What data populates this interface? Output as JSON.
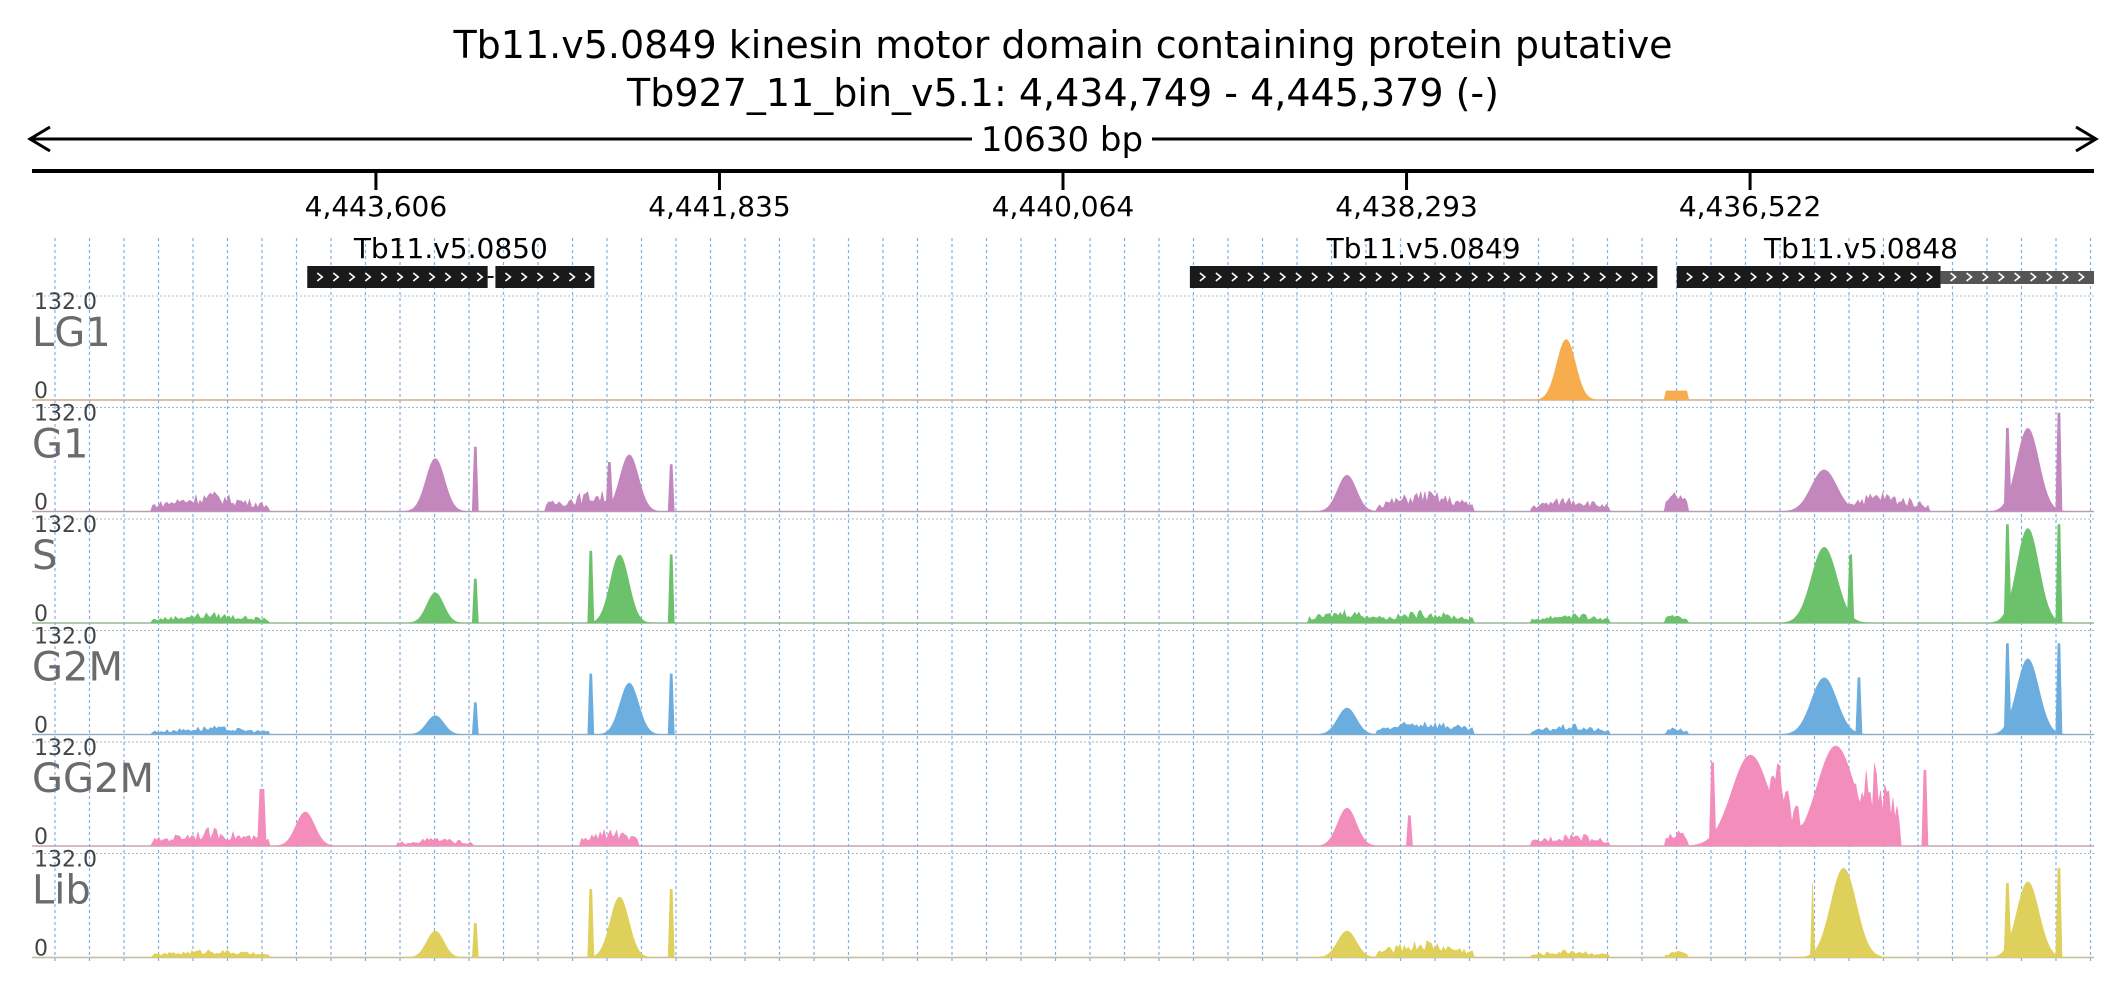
{
  "header": {
    "title": "Tb11.v5.0849  kinesin motor domain containing protein  putative",
    "subtitle": "Tb927_11_bin_v5.1: 4,434,749 - 4,445,379 (-)",
    "span_label": "10630 bp"
  },
  "chart_data": {
    "type": "area",
    "genome_region": {
      "start": 4434749,
      "end": 4445379,
      "strand": "-"
    },
    "ticks": [
      {
        "value": 4443606,
        "label": "4,443,606"
      },
      {
        "value": 4441835,
        "label": "4,441,835"
      },
      {
        "value": 4440064,
        "label": "4,440,064"
      },
      {
        "value": 4438293,
        "label": "4,438,293"
      },
      {
        "value": 4436522,
        "label": "4,436,522"
      }
    ],
    "genes": [
      {
        "name": "Tb11.v5.0850",
        "start": 4442480,
        "end": 4443960,
        "color": "#1a1a1a",
        "gap": [
          4443030,
          4442990
        ]
      },
      {
        "name": "Tb11.v5.0849",
        "start": 4437000,
        "end": 4439410,
        "color": "#1a1a1a"
      },
      {
        "name": "Tb11.v5.0848",
        "start": 4434749,
        "end": 4436900,
        "color": "#1a1a1a",
        "split": 4435540,
        "split_color": "#555555"
      }
    ],
    "y_max_label": "132.0",
    "y_min_label": "0",
    "ylim": [
      0,
      132
    ],
    "tracks": [
      {
        "name": "LG1",
        "color": "#f7ac4d",
        "peaks": [
          [
            4437778,
            130,
            0,
            "block"
          ],
          [
            4437470,
            80,
            110,
            "gauss"
          ],
          [
            4436640,
            0,
            45,
            "gauss"
          ],
          [
            4435825,
            130,
            0,
            "block"
          ],
          [
            4436485,
            130,
            0,
            "block"
          ],
          [
            4436180,
            130,
            0,
            "block"
          ],
          [
            4436150,
            130,
            0,
            "gauss"
          ],
          [
            4436900,
            12,
            120,
            "block"
          ]
        ]
      },
      {
        "name": "G1",
        "color": "#c387bd",
        "peaks": [
          [
            4444460,
            28,
            300,
            "noise"
          ],
          [
            4443300,
            70,
            110,
            "gauss"
          ],
          [
            4443090,
            85,
            20,
            "block"
          ],
          [
            4442300,
            75,
            110,
            "gauss"
          ],
          [
            4442400,
            65,
            20,
            "block"
          ],
          [
            4442080,
            62,
            20,
            "block"
          ],
          [
            4442480,
            30,
            250,
            "noise"
          ],
          [
            4438600,
            48,
            110,
            "gauss"
          ],
          [
            4438200,
            30,
            250,
            "noise"
          ],
          [
            4437450,
            22,
            200,
            "noise"
          ],
          [
            4436900,
            32,
            60,
            "noise"
          ],
          [
            4436140,
            55,
            150,
            "gauss"
          ],
          [
            4435850,
            28,
            250,
            "noise"
          ],
          [
            4435090,
            110,
            130,
            "gauss"
          ],
          [
            4435200,
            110,
            20,
            "block"
          ],
          [
            4434930,
            130,
            20,
            "block"
          ]
        ]
      },
      {
        "name": "S",
        "color": "#6bc26b",
        "peaks": [
          [
            4444460,
            15,
            300,
            "noise"
          ],
          [
            4443300,
            40,
            100,
            "gauss"
          ],
          [
            4443090,
            58,
            20,
            "block"
          ],
          [
            4442350,
            90,
            110,
            "gauss"
          ],
          [
            4442500,
            95,
            20,
            "block"
          ],
          [
            4442080,
            90,
            20,
            "block"
          ],
          [
            4438600,
            20,
            200,
            "noise"
          ],
          [
            4438200,
            18,
            250,
            "noise"
          ],
          [
            4437450,
            15,
            200,
            "noise"
          ],
          [
            4436900,
            16,
            60,
            "noise"
          ],
          [
            4436140,
            100,
            150,
            "gauss"
          ],
          [
            4436000,
            90,
            20,
            "block"
          ],
          [
            4435090,
            125,
            130,
            "gauss"
          ],
          [
            4435200,
            130,
            20,
            "block"
          ],
          [
            4434930,
            130,
            20,
            "block"
          ]
        ]
      },
      {
        "name": "G2M",
        "color": "#6badde",
        "peaks": [
          [
            4444460,
            12,
            300,
            "noise"
          ],
          [
            4443300,
            25,
            100,
            "gauss"
          ],
          [
            4443090,
            42,
            20,
            "block"
          ],
          [
            4442300,
            68,
            110,
            "gauss"
          ],
          [
            4442500,
            80,
            20,
            "block"
          ],
          [
            4442080,
            80,
            20,
            "block"
          ],
          [
            4438600,
            35,
            110,
            "gauss"
          ],
          [
            4438200,
            22,
            250,
            "noise"
          ],
          [
            4437450,
            15,
            200,
            "noise"
          ],
          [
            4436900,
            12,
            60,
            "noise"
          ],
          [
            4436140,
            75,
            150,
            "gauss"
          ],
          [
            4435960,
            75,
            20,
            "block"
          ],
          [
            4435090,
            100,
            130,
            "gauss"
          ],
          [
            4435200,
            120,
            20,
            "block"
          ],
          [
            4434930,
            120,
            20,
            "block"
          ]
        ]
      },
      {
        "name": "GG2M",
        "color": "#f28dbc",
        "peaks": [
          [
            4444460,
            25,
            300,
            "noise"
          ],
          [
            4444190,
            75,
            30,
            "block"
          ],
          [
            4443970,
            45,
            110,
            "gauss"
          ],
          [
            4443300,
            12,
            200,
            "noise"
          ],
          [
            4442400,
            25,
            150,
            "noise"
          ],
          [
            4438600,
            50,
            110,
            "gauss"
          ],
          [
            4438280,
            40,
            20,
            "block"
          ],
          [
            4437450,
            20,
            200,
            "noise"
          ],
          [
            4436900,
            25,
            60,
            "noise"
          ],
          [
            4436520,
            120,
            220,
            "gauss"
          ],
          [
            4436400,
            130,
            150,
            "noise"
          ],
          [
            4436720,
            110,
            20,
            "block"
          ],
          [
            4436080,
            132,
            220,
            "gauss"
          ],
          [
            4435900,
            120,
            150,
            "noise"
          ],
          [
            4435620,
            100,
            30,
            "block"
          ]
        ]
      },
      {
        "name": "Lib",
        "color": "#dfd05c",
        "peaks": [
          [
            4444460,
            12,
            300,
            "noise"
          ],
          [
            4443300,
            35,
            100,
            "gauss"
          ],
          [
            4443090,
            45,
            20,
            "block"
          ],
          [
            4442350,
            80,
            110,
            "gauss"
          ],
          [
            4442500,
            90,
            20,
            "block"
          ],
          [
            4442080,
            90,
            20,
            "block"
          ],
          [
            4438600,
            35,
            110,
            "gauss"
          ],
          [
            4438200,
            25,
            250,
            "noise"
          ],
          [
            4437450,
            12,
            200,
            "noise"
          ],
          [
            4436900,
            10,
            60,
            "noise"
          ],
          [
            4436040,
            118,
            150,
            "gauss"
          ],
          [
            4436200,
            98,
            20,
            "block"
          ],
          [
            4435090,
            100,
            130,
            "gauss"
          ],
          [
            4435200,
            98,
            20,
            "block"
          ],
          [
            4434930,
            118,
            20,
            "block"
          ]
        ]
      }
    ]
  }
}
